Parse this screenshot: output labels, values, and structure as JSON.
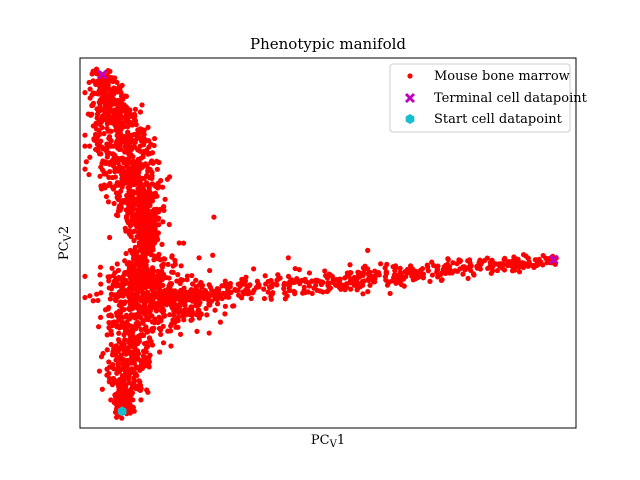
{
  "chart_data": {
    "type": "scatter",
    "title": "Phenotypic manifold",
    "xlabel": "PC",
    "xlabel_sub": "V",
    "xlabel_suffix": "1",
    "ylabel": "PC",
    "ylabel_sub": "V",
    "ylabel_suffix": "2",
    "xlim": [
      0,
      1
    ],
    "ylim": [
      0,
      1
    ],
    "grid": false,
    "ticks_visible": false,
    "legend_position": "top-right",
    "series": [
      {
        "name": "Mouse bone marrow",
        "marker": "circle",
        "color": "#ff0000",
        "arms": [
          {
            "from": [
              0.045,
              0.955
            ],
            "to": [
              0.135,
              0.52
            ],
            "count": 900,
            "spread": 0.022
          },
          {
            "from": [
              0.135,
              0.52
            ],
            "to": [
              0.085,
              0.045
            ],
            "count": 650,
            "spread": 0.02
          },
          {
            "from": [
              0.15,
              0.35
            ],
            "to": [
              0.955,
              0.455
            ],
            "count": 520,
            "spread": 0.014
          },
          {
            "from": [
              0.1,
              0.4
            ],
            "to": [
              0.22,
              0.33
            ],
            "count": 420,
            "spread": 0.04
          }
        ],
        "outliers": [
          [
            0.27,
            0.57
          ],
          [
            0.2,
            0.5
          ],
          [
            0.35,
            0.43
          ],
          [
            0.42,
            0.46
          ],
          [
            0.24,
            0.46
          ],
          [
            0.18,
            0.55
          ],
          [
            0.31,
            0.33
          ],
          [
            0.58,
            0.48
          ]
        ]
      },
      {
        "name": "Terminal cell datapoint",
        "marker": "x",
        "color": "#bf00bf",
        "points": [
          [
            0.045,
            0.955
          ],
          [
            0.955,
            0.455
          ]
        ]
      },
      {
        "name": "Start cell datapoint",
        "marker": "hexagon",
        "color": "#17becf",
        "points": [
          [
            0.085,
            0.045
          ]
        ]
      }
    ]
  }
}
